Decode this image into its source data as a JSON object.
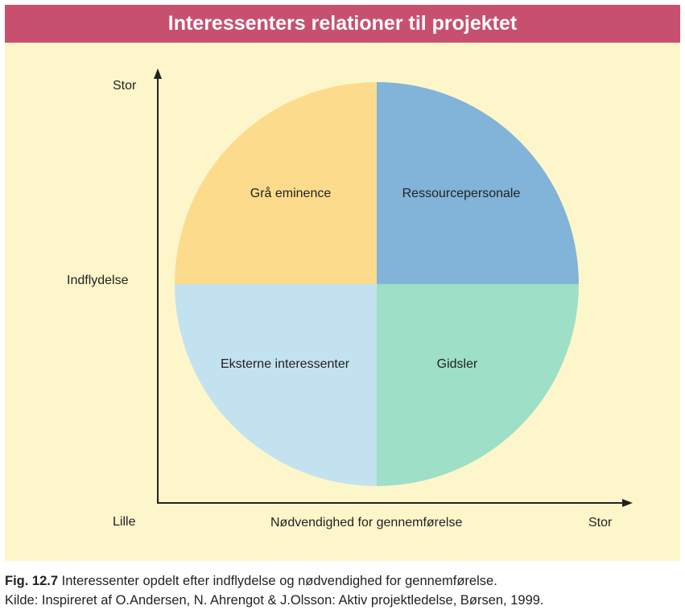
{
  "header": {
    "title": "Interessenters relationer til projektet"
  },
  "axes": {
    "y_label": "Indflydelse",
    "y_high": "Stor",
    "y_low": "Lille",
    "x_label": "Nødvendighed for gennemførelse",
    "x_high": "Stor"
  },
  "quadrants": {
    "top_left": {
      "label": "Grå eminence",
      "color": "#fcdc8c"
    },
    "top_right": {
      "label": "Ressourcepersonale",
      "color": "#82b3d9"
    },
    "bottom_left": {
      "label": "Eksterne interessenter",
      "color": "#c3e2ef"
    },
    "bottom_right": {
      "label": "Gidsler",
      "color": "#9ddfc7"
    }
  },
  "caption": {
    "fig_label": "Fig. 12.7",
    "fig_text": " Interessenter opdelt efter indflydelse og nødvendighed for gennemførelse.",
    "source": "Kilde: Inspireret af O.Andersen, N. Ahrengot & J.Olsson: Aktiv projektledelse, Børsen, 1999."
  },
  "colors": {
    "header_bg": "#c8506f",
    "panel_bg": "#fef6cb",
    "axis": "#222222"
  }
}
